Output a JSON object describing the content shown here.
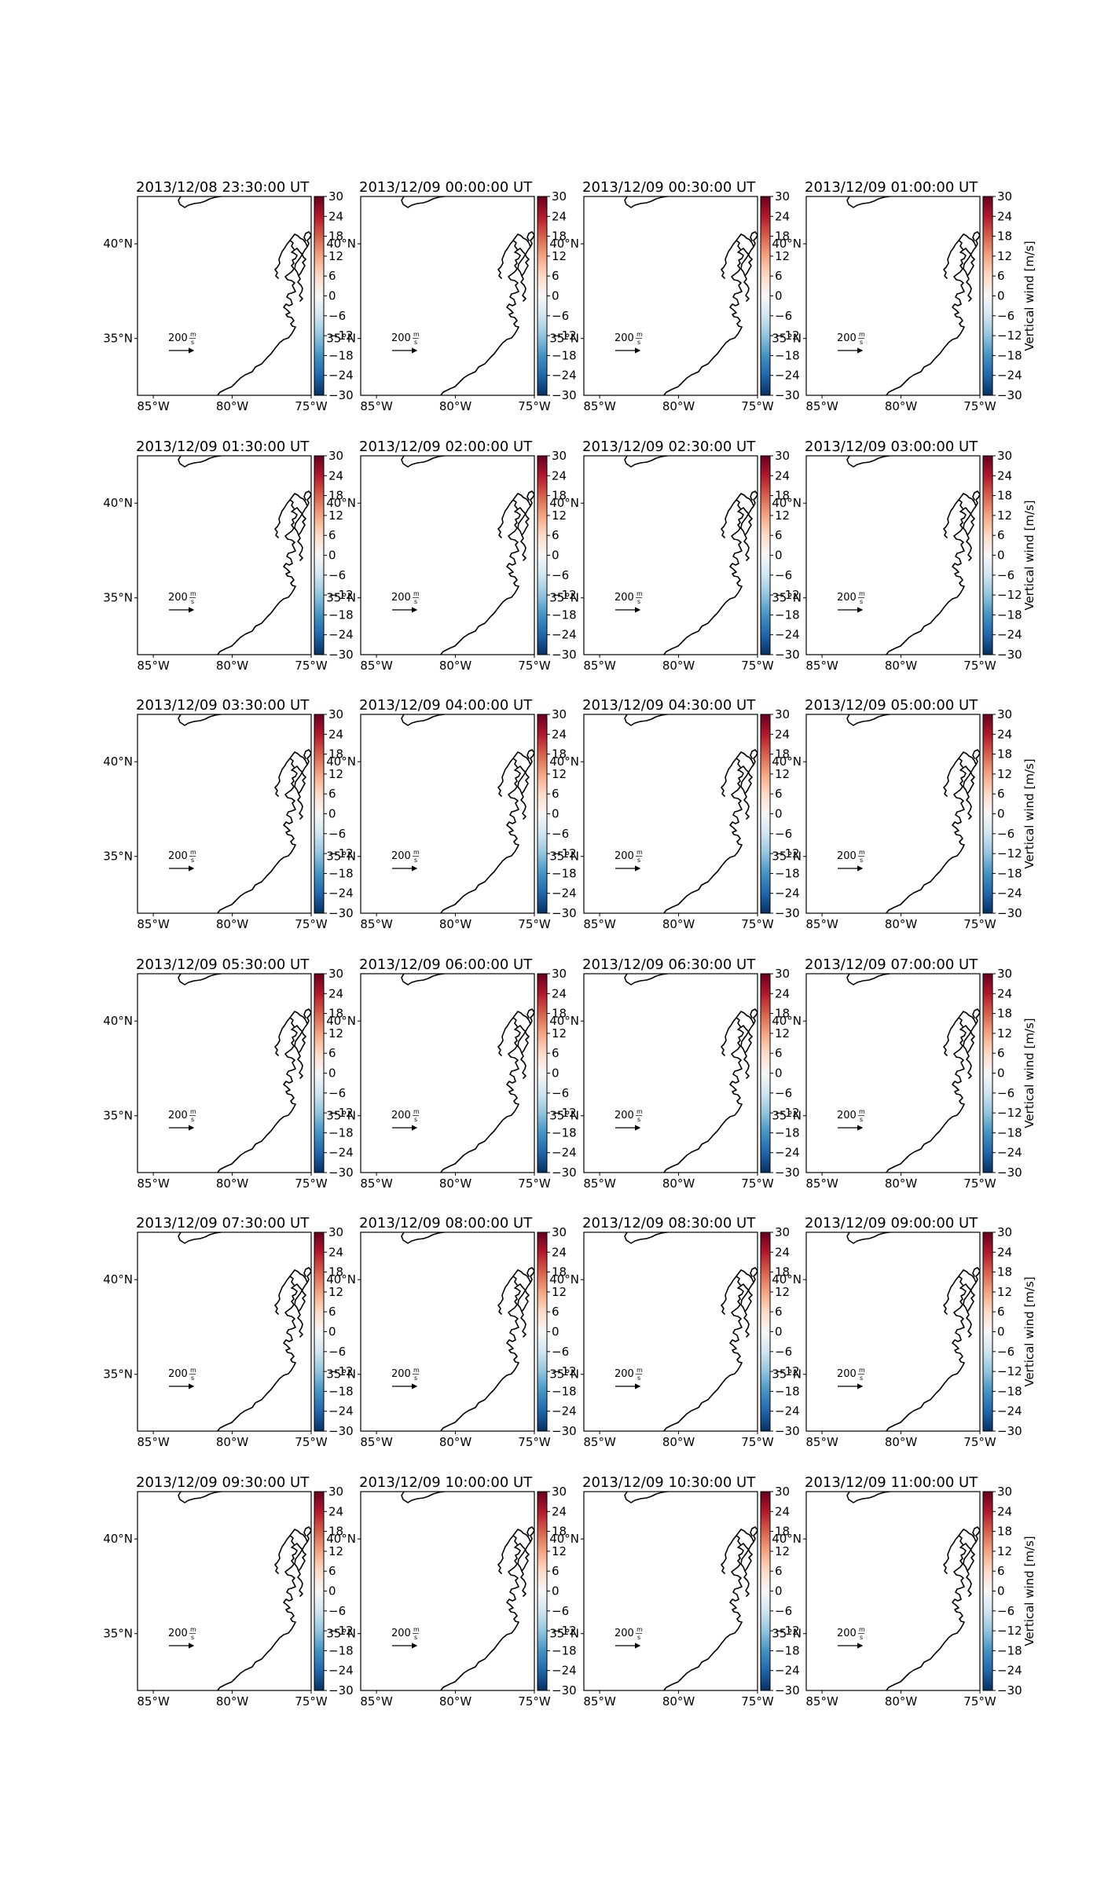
{
  "figure": {
    "x_ticks": [
      "85°W",
      "80°W",
      "75°W"
    ],
    "y_ticks": [
      "40°N",
      "35°N"
    ],
    "colorbar": {
      "ticks": [
        "30",
        "24",
        "18",
        "12",
        "6",
        "0",
        "−6",
        "−12",
        "−18",
        "−24",
        "−30"
      ],
      "label": "Vertical wind [m/s]",
      "range": [
        -30,
        30
      ],
      "colormap": "RdBu_r",
      "stops": [
        "#053061",
        "#2166ac",
        "#4393c3",
        "#92c5de",
        "#d1e5f0",
        "#f7f7f7",
        "#fddbc7",
        "#f4a582",
        "#d6604d",
        "#b2182b",
        "#67001f"
      ]
    },
    "vector_key": {
      "magnitude": "200",
      "unit_num": "m",
      "unit_den": "s"
    },
    "lon_range": [
      -86,
      -75
    ],
    "lat_range": [
      32,
      42.5
    ],
    "panels": [
      {
        "title": "2013/12/08 23:30:00 UT"
      },
      {
        "title": "2013/12/09 00:00:00 UT"
      },
      {
        "title": "2013/12/09 00:30:00 UT"
      },
      {
        "title": "2013/12/09 01:00:00 UT"
      },
      {
        "title": "2013/12/09 01:30:00 UT"
      },
      {
        "title": "2013/12/09 02:00:00 UT"
      },
      {
        "title": "2013/12/09 02:30:00 UT"
      },
      {
        "title": "2013/12/09 03:00:00 UT"
      },
      {
        "title": "2013/12/09 03:30:00 UT"
      },
      {
        "title": "2013/12/09 04:00:00 UT"
      },
      {
        "title": "2013/12/09 04:30:00 UT"
      },
      {
        "title": "2013/12/09 05:00:00 UT"
      },
      {
        "title": "2013/12/09 05:30:00 UT"
      },
      {
        "title": "2013/12/09 06:00:00 UT"
      },
      {
        "title": "2013/12/09 06:30:00 UT"
      },
      {
        "title": "2013/12/09 07:00:00 UT"
      },
      {
        "title": "2013/12/09 07:30:00 UT"
      },
      {
        "title": "2013/12/09 08:00:00 UT"
      },
      {
        "title": "2013/12/09 08:30:00 UT"
      },
      {
        "title": "2013/12/09 09:00:00 UT"
      },
      {
        "title": "2013/12/09 09:30:00 UT"
      },
      {
        "title": "2013/12/09 10:00:00 UT"
      },
      {
        "title": "2013/12/09 10:30:00 UT"
      },
      {
        "title": "2013/12/09 11:00:00 UT"
      }
    ]
  }
}
